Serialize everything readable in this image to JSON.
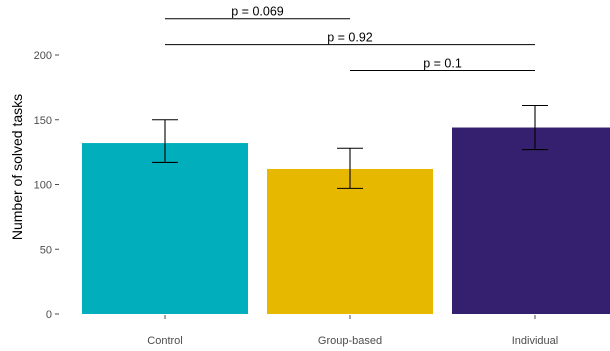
{
  "chart_data": {
    "type": "bar",
    "categories": [
      "Control",
      "Group-based",
      "Individual"
    ],
    "values": [
      132,
      112,
      144
    ],
    "error_low": [
      117,
      97,
      127
    ],
    "error_high": [
      150,
      128,
      161
    ],
    "colors": [
      "#00AFBB",
      "#E7B800",
      "#351F6F"
    ],
    "ylabel": "Number of solved tasks",
    "xlabel": "",
    "ylim": [
      0,
      200
    ],
    "yticks": [
      0,
      50,
      100,
      150,
      200
    ],
    "grid": false,
    "comparisons": [
      {
        "from": 0,
        "to": 1,
        "label": "p = 0.069",
        "y": 228
      },
      {
        "from": 0,
        "to": 2,
        "label": "p = 0.92",
        "y": 208
      },
      {
        "from": 1,
        "to": 2,
        "label": "p = 0.1",
        "y": 188
      }
    ]
  }
}
